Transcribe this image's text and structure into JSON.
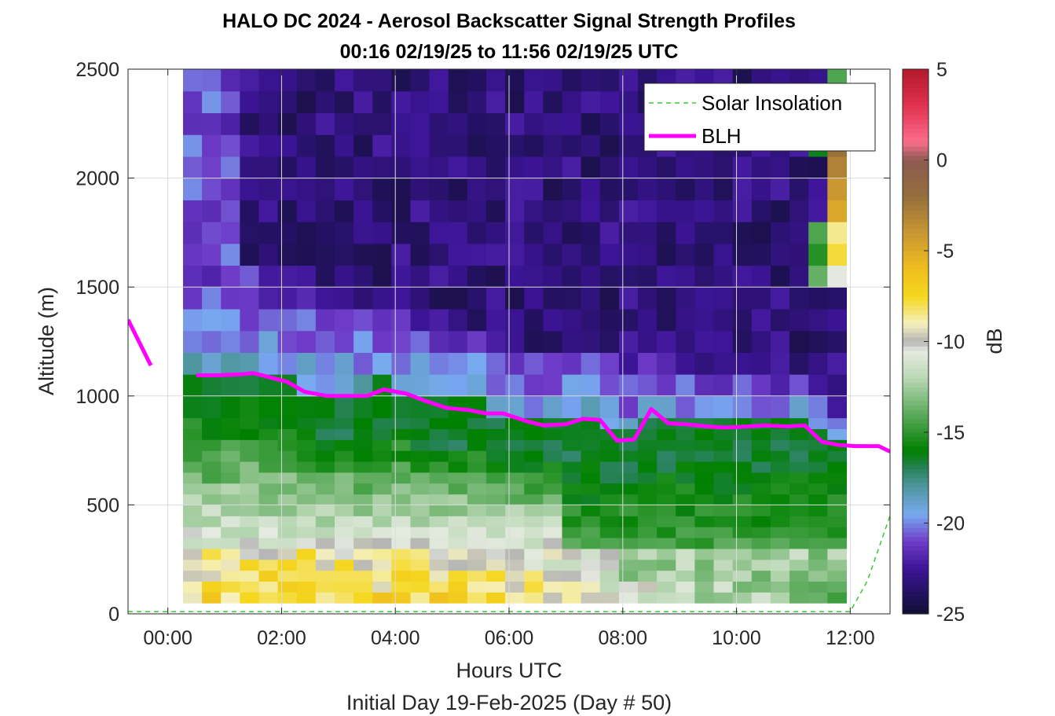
{
  "chart_data": {
    "type": "heatmap",
    "title": "HALO DC 2024 - Aerosol Backscatter Signal Strength Profiles",
    "subtitle": "00:16 02/19/25 to 11:56 02/19/25  UTC",
    "xlabel": "Hours UTC",
    "xlabel2": "Initial Day 19-Feb-2025 (Day # 50)",
    "ylabel": "Altitude (m)",
    "colorbar_label": "dB",
    "x_range_hours": [
      -0.7,
      12.7
    ],
    "ylim": [
      0,
      2500
    ],
    "clim": [
      -25,
      5
    ],
    "x_ticks": [
      "00:00",
      "02:00",
      "04:00",
      "06:00",
      "08:00",
      "10:00",
      "12:00"
    ],
    "x_tick_values": [
      0,
      2,
      4,
      6,
      8,
      10,
      12
    ],
    "y_ticks": [
      "0",
      "500",
      "1000",
      "1500",
      "2000",
      "2500"
    ],
    "y_tick_values": [
      0,
      500,
      1000,
      1500,
      2000,
      2500
    ],
    "colorbar_ticks": [
      "5",
      "0",
      "-5",
      "-10",
      "-15",
      "-20",
      "-25"
    ],
    "colorbar_tick_values": [
      5,
      0,
      -5,
      -10,
      -15,
      -20,
      -25
    ],
    "grid": true,
    "legend_position": "top-right",
    "legend": [
      {
        "label": "Solar Insolation",
        "color": "#33cc33",
        "style": "dashed"
      },
      {
        "label": "BLH",
        "color": "#ff00ff",
        "style": "solid"
      }
    ],
    "heatmap": {
      "x_start_hour": 0.2667,
      "x_step_hour": 0.3333,
      "y_bins": [
        [
          50,
          100
        ],
        [
          100,
          150
        ],
        [
          150,
          200
        ],
        [
          200,
          250
        ],
        [
          250,
          300
        ],
        [
          300,
          350
        ],
        [
          350,
          400
        ],
        [
          400,
          450
        ],
        [
          450,
          500
        ],
        [
          500,
          550
        ],
        [
          550,
          600
        ],
        [
          600,
          650
        ],
        [
          650,
          700
        ],
        [
          700,
          750
        ],
        [
          750,
          800
        ],
        [
          800,
          850
        ],
        [
          850,
          900
        ],
        [
          900,
          1000
        ],
        [
          1000,
          1100
        ],
        [
          1100,
          1200
        ],
        [
          1200,
          1300
        ],
        [
          1300,
          1400
        ],
        [
          1400,
          1500
        ],
        [
          1500,
          1600
        ],
        [
          1600,
          1700
        ],
        [
          1700,
          1800
        ],
        [
          1800,
          1900
        ],
        [
          1900,
          2000
        ],
        [
          2000,
          2100
        ],
        [
          2100,
          2200
        ],
        [
          2200,
          2300
        ],
        [
          2300,
          2400
        ],
        [
          2400,
          2500
        ]
      ],
      "profile_description": "Per-column values in dB are generated along altitude from anchors: surface high (-5 to -10), mixed layer -15 to -17 up to BLH, transition layer -19 to -22, free troposphere -23 to -25; last columns near 12:00 UTC show cloud signals (-5 to -15) above 1500 m."
    },
    "series": [
      {
        "name": "BLH",
        "x": [
          -0.7,
          -0.3,
          0.5,
          0.9,
          1.3,
          1.5,
          1.8,
          2.1,
          2.4,
          2.8,
          3.2,
          3.5,
          3.8,
          4.2,
          4.5,
          4.9,
          5.3,
          5.6,
          5.9,
          6.3,
          6.6,
          7.0,
          7.3,
          7.6,
          7.9,
          8.2,
          8.5,
          8.8,
          9.1,
          9.5,
          9.8,
          10.2,
          10.5,
          10.9,
          11.2,
          11.5,
          11.8,
          12.1,
          12.5,
          12.7
        ],
        "y": [
          1350,
          1140,
          1095,
          1095,
          1100,
          1105,
          1085,
          1065,
          1020,
          1000,
          1000,
          1000,
          1030,
          1010,
          980,
          945,
          935,
          920,
          920,
          885,
          865,
          870,
          895,
          890,
          795,
          800,
          940,
          875,
          870,
          860,
          855,
          860,
          865,
          860,
          865,
          790,
          775,
          770,
          770,
          745
        ],
        "gap_between": [
          -0.3,
          0.5
        ]
      },
      {
        "name": "Solar Insolation",
        "x": [
          -0.7,
          12.0,
          12.3,
          12.7
        ],
        "y": [
          10,
          10,
          150,
          450
        ]
      }
    ]
  }
}
